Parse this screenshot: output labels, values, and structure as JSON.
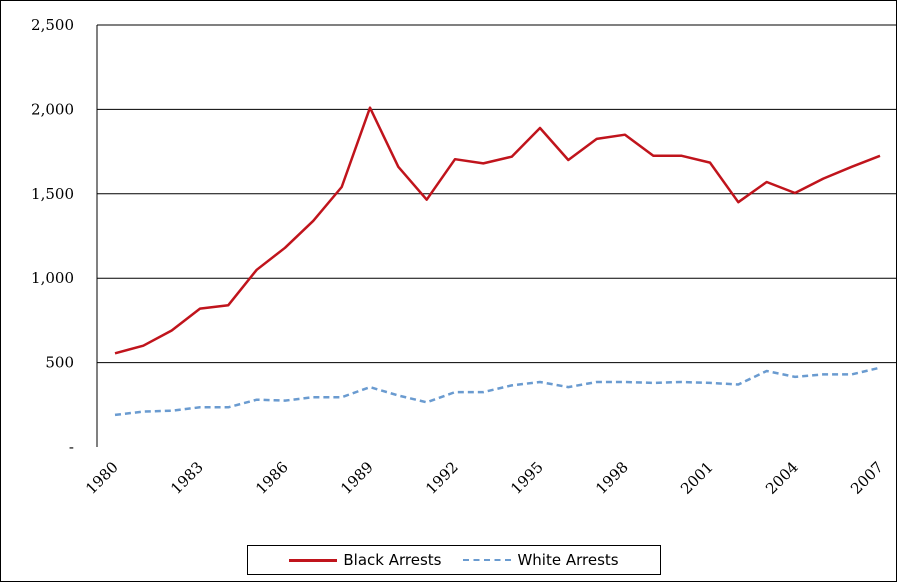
{
  "chart_data": {
    "type": "line",
    "title": "",
    "xlabel": "",
    "ylabel": "",
    "x": [
      1980,
      1981,
      1982,
      1983,
      1984,
      1985,
      1986,
      1987,
      1988,
      1989,
      1990,
      1991,
      1992,
      1993,
      1994,
      1995,
      1996,
      1997,
      1998,
      1999,
      2000,
      2001,
      2002,
      2003,
      2004,
      2005,
      2006,
      2007
    ],
    "x_tick_labels": [
      "1980",
      "1983",
      "1986",
      "1989",
      "1992",
      "1995",
      "1998",
      "2001",
      "2004",
      "2007"
    ],
    "x_tick_values": [
      1980,
      1983,
      1986,
      1989,
      1992,
      1995,
      1998,
      2001,
      2004,
      2007
    ],
    "y_tick_labels": [
      "-",
      "500",
      "1,000",
      "1,500",
      "2,000",
      "2,500"
    ],
    "y_tick_values": [
      0,
      500,
      1000,
      1500,
      2000,
      2500
    ],
    "ylim": [
      0,
      2500
    ],
    "grid": "horizontal",
    "legend": "bottom",
    "series": [
      {
        "name": "Black Arrests",
        "color": "#c0141c",
        "style": "solid",
        "values": [
          555,
          600,
          690,
          820,
          840,
          1050,
          1180,
          1340,
          1540,
          2010,
          1660,
          1465,
          1705,
          1680,
          1720,
          1890,
          1700,
          1825,
          1850,
          1725,
          1725,
          1685,
          1450,
          1570,
          1505,
          1590,
          1660,
          1725
        ]
      },
      {
        "name": "White Arrests",
        "color": "#6a9bd0",
        "style": "dashed",
        "values": [
          190,
          210,
          215,
          235,
          235,
          280,
          275,
          295,
          295,
          355,
          305,
          265,
          325,
          325,
          365,
          385,
          355,
          385,
          385,
          380,
          385,
          380,
          370,
          450,
          415,
          430,
          430,
          470
        ]
      }
    ]
  }
}
